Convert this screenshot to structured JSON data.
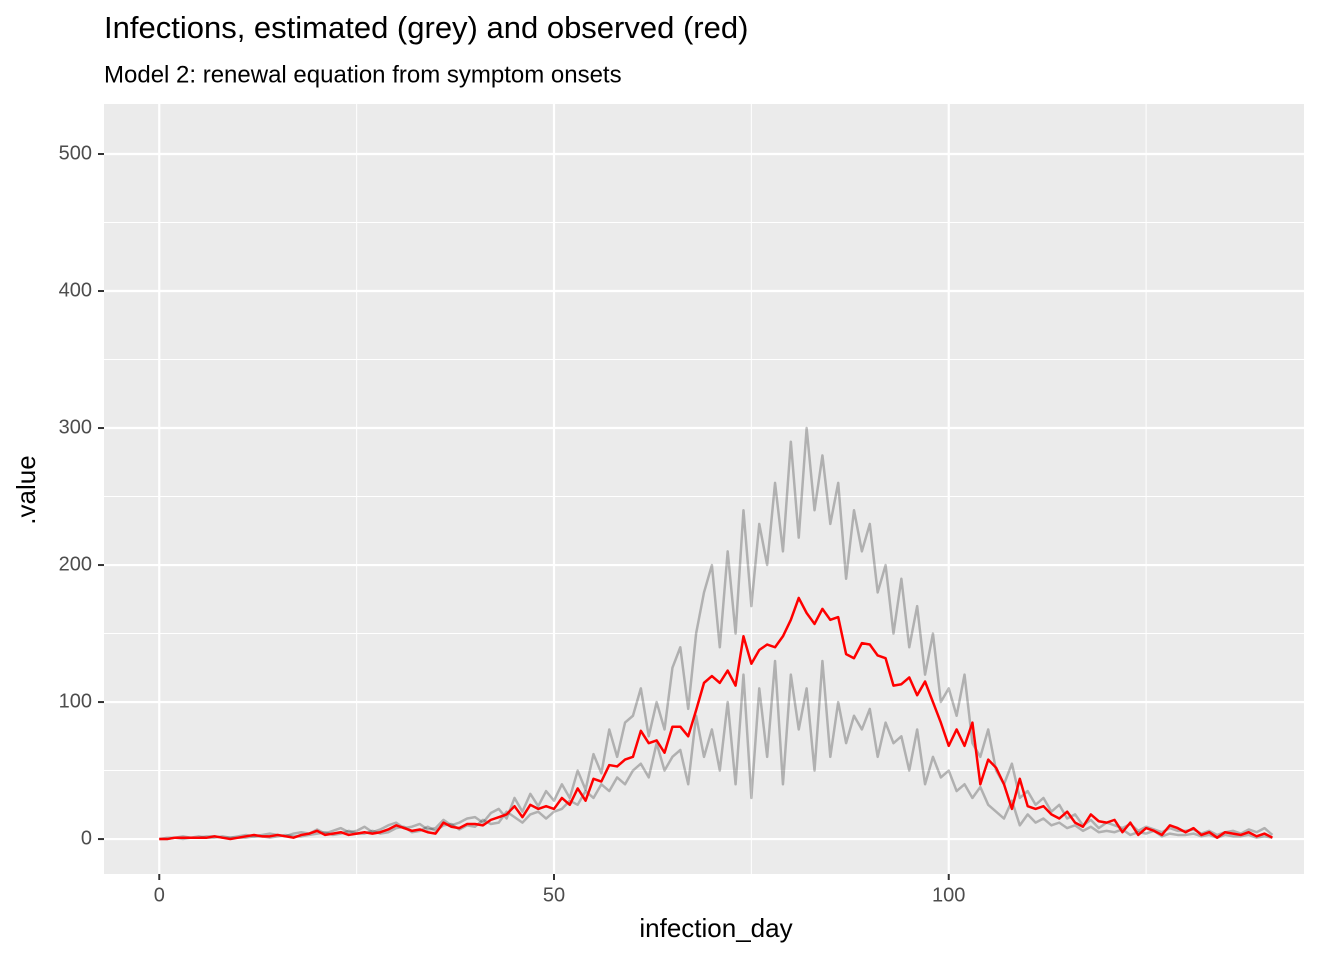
{
  "chart_data": {
    "type": "line",
    "title": "Infections, estimated (grey) and observed (red)",
    "subtitle": "Model 2: renewal equation from symptom onsets",
    "x_label": "infection_day",
    "y_label": ".value",
    "x": [
      0,
      1,
      2,
      3,
      4,
      5,
      6,
      7,
      8,
      9,
      10,
      11,
      12,
      13,
      14,
      15,
      16,
      17,
      18,
      19,
      20,
      21,
      22,
      23,
      24,
      25,
      26,
      27,
      28,
      29,
      30,
      31,
      32,
      33,
      34,
      35,
      36,
      37,
      38,
      39,
      40,
      41,
      42,
      43,
      44,
      45,
      46,
      47,
      48,
      49,
      50,
      51,
      52,
      53,
      54,
      55,
      56,
      57,
      58,
      59,
      60,
      61,
      62,
      63,
      64,
      65,
      66,
      67,
      68,
      69,
      70,
      71,
      72,
      73,
      74,
      75,
      76,
      77,
      78,
      79,
      80,
      81,
      82,
      83,
      84,
      85,
      86,
      87,
      88,
      89,
      90,
      91,
      92,
      93,
      94,
      95,
      96,
      97,
      98,
      99,
      100,
      101,
      102,
      103,
      104,
      105,
      106,
      107,
      108,
      109,
      110,
      111,
      112,
      113,
      114,
      115,
      116,
      117,
      118,
      119,
      120,
      121,
      122,
      123,
      124,
      125,
      126,
      127,
      128,
      129,
      130,
      131,
      132,
      133,
      134,
      135,
      136,
      137,
      138,
      139,
      140,
      141
    ],
    "series": [
      {
        "color": "#000000",
        "alpha": 0.25,
        "values": [
          0,
          1,
          1,
          2,
          1,
          1,
          2,
          2,
          1,
          1,
          2,
          3,
          2,
          3,
          4,
          3,
          2,
          4,
          5,
          4,
          7,
          4,
          6,
          8,
          5,
          6,
          9,
          5,
          7,
          10,
          12,
          8,
          9,
          11,
          7,
          8,
          14,
          10,
          12,
          15,
          16,
          12,
          19,
          22,
          15,
          30,
          20,
          33,
          24,
          35,
          28,
          40,
          30,
          50,
          36,
          62,
          48,
          80,
          60,
          85,
          90,
          110,
          75,
          100,
          80,
          125,
          140,
          95,
          150,
          180,
          200,
          140,
          210,
          150,
          240,
          170,
          230,
          200,
          260,
          210,
          290,
          220,
          300,
          240,
          280,
          230,
          260,
          190,
          240,
          210,
          230,
          180,
          200,
          150,
          190,
          140,
          170,
          120,
          150,
          100,
          110,
          90,
          120,
          70,
          60,
          80,
          50,
          40,
          55,
          30,
          35,
          25,
          30,
          20,
          25,
          15,
          18,
          10,
          14,
          8,
          12,
          10,
          8,
          11,
          6,
          9,
          7,
          5,
          8,
          6,
          6,
          7,
          4,
          6,
          3,
          5,
          6,
          4,
          7,
          5,
          8,
          3
        ]
      },
      {
        "color": "#000000",
        "alpha": 0.25,
        "values": [
          0,
          0,
          1,
          0,
          1,
          2,
          1,
          1,
          2,
          1,
          1,
          1,
          2,
          2,
          1,
          2,
          3,
          2,
          2,
          3,
          4,
          5,
          3,
          4,
          6,
          4,
          4,
          6,
          4,
          5,
          8,
          9,
          5,
          6,
          9,
          6,
          10,
          11,
          7,
          10,
          9,
          14,
          11,
          12,
          20,
          16,
          12,
          18,
          20,
          15,
          20,
          22,
          28,
          25,
          35,
          30,
          40,
          35,
          45,
          40,
          50,
          55,
          45,
          70,
          50,
          60,
          65,
          40,
          90,
          60,
          80,
          50,
          100,
          40,
          120,
          30,
          110,
          60,
          130,
          40,
          120,
          80,
          110,
          50,
          130,
          60,
          100,
          70,
          90,
          80,
          95,
          60,
          85,
          70,
          75,
          50,
          80,
          40,
          60,
          45,
          50,
          35,
          40,
          30,
          38,
          25,
          20,
          15,
          28,
          10,
          18,
          12,
          15,
          10,
          12,
          8,
          10,
          6,
          9,
          5,
          6,
          5,
          7,
          3,
          5,
          4,
          6,
          2,
          4,
          3,
          3,
          4,
          2,
          3,
          1,
          3,
          2,
          2,
          3,
          1,
          2,
          1
        ]
      },
      {
        "color": "#ff0000",
        "alpha": 1,
        "values": [
          0,
          0,
          1,
          1,
          1,
          1,
          1,
          2,
          1,
          0,
          1,
          2,
          3,
          2,
          2,
          3,
          2,
          1,
          3,
          4,
          6,
          3,
          4,
          5,
          3,
          4,
          5,
          4,
          5,
          7,
          10,
          8,
          6,
          7,
          5,
          4,
          12,
          9,
          8,
          11,
          11,
          10,
          14,
          16,
          18,
          24,
          16,
          25,
          22,
          24,
          22,
          30,
          25,
          37,
          28,
          44,
          42,
          54,
          53,
          58,
          60,
          79,
          70,
          72,
          63,
          82,
          82,
          75,
          94,
          114,
          119,
          114,
          123,
          112,
          148,
          128,
          138,
          142,
          140,
          148,
          160,
          176,
          165,
          157,
          168,
          160,
          162,
          135,
          132,
          143,
          142,
          134,
          132,
          112,
          113,
          118,
          105,
          115,
          100,
          85,
          68,
          80,
          68,
          85,
          40,
          58,
          52,
          40,
          22,
          44,
          24,
          22,
          24,
          18,
          15,
          20,
          12,
          9,
          18,
          13,
          12,
          14,
          5,
          12,
          3,
          8,
          6,
          3,
          10,
          8,
          5,
          8,
          3,
          5,
          1,
          5,
          4,
          3,
          5,
          2,
          4,
          1
        ]
      }
    ],
    "xlim": [
      -7,
      145
    ],
    "ylim": [
      -25.5,
      536.5
    ],
    "xticks": [
      0,
      50,
      100
    ],
    "yticks": [
      0,
      100,
      200,
      300,
      400,
      500
    ],
    "minor_xticks": [
      25,
      75,
      125
    ],
    "minor_yticks": [
      50,
      150,
      250,
      350,
      450
    ],
    "grid": true
  }
}
